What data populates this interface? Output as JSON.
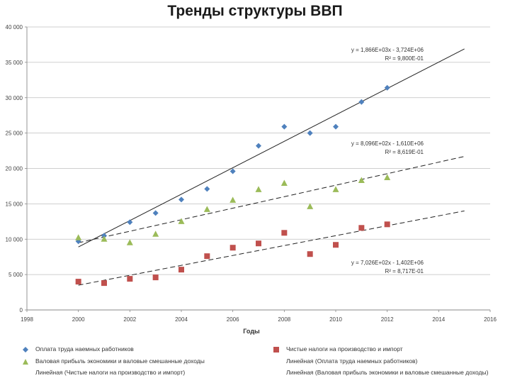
{
  "chart_data": {
    "type": "scatter",
    "title": "Тренды структуры ВВП",
    "xlabel": "Годы",
    "ylabel": "",
    "xlim": [
      1998,
      2016
    ],
    "ylim": [
      0,
      40000
    ],
    "x_ticks": [
      "1998",
      "2000",
      "2002",
      "2004",
      "2006",
      "2008",
      "2010",
      "2012",
      "2014",
      "2016"
    ],
    "y_ticks": [
      "0",
      "5 000",
      "10 000",
      "15 000",
      "20 000",
      "25 000",
      "30 000",
      "35 000",
      "40 000"
    ],
    "grid": "horizontal",
    "legend_position": "bottom",
    "series": [
      {
        "name": "Оплата труда наемных работников",
        "marker": "diamond",
        "color": "#4f81bd",
        "x": [
          2000,
          2001,
          2002,
          2003,
          2004,
          2005,
          2006,
          2007,
          2008,
          2009,
          2010,
          2011,
          2012
        ],
        "values": [
          9700,
          10500,
          12400,
          13700,
          15600,
          17100,
          19600,
          23200,
          25900,
          25000,
          25900,
          29400,
          31400
        ]
      },
      {
        "name": "Чистые налоги на производство и импорт",
        "marker": "square",
        "color": "#c0504d",
        "x": [
          2000,
          2001,
          2002,
          2003,
          2004,
          2005,
          2006,
          2007,
          2008,
          2009,
          2010,
          2011,
          2012
        ],
        "values": [
          4000,
          3800,
          4400,
          4600,
          5700,
          7600,
          8800,
          9400,
          10900,
          7900,
          9200,
          11600,
          12100
        ]
      },
      {
        "name": "Валовая прибыль экономики и валовые смешанные доходы",
        "marker": "triangle",
        "color": "#9bbb59",
        "x": [
          2000,
          2001,
          2002,
          2003,
          2004,
          2005,
          2006,
          2007,
          2008,
          2009,
          2010,
          2011,
          2012
        ],
        "values": [
          10200,
          10000,
          9500,
          10700,
          12500,
          14200,
          15500,
          17000,
          17900,
          14600,
          17000,
          18300,
          18700
        ]
      }
    ],
    "trendlines": [
      {
        "name": "Линейная (Оплата труда наемных работников)",
        "style": "solid",
        "equation": "y = 1,866E+03x - 3,724E+06",
        "r2": "R² = 9,800E-01",
        "x_range": [
          2000,
          2015
        ],
        "y_range": [
          8900,
          36900
        ]
      },
      {
        "name": "Линейная (Валовая прибыль экономики и валовые смешанные доходы)",
        "style": "dashed",
        "equation": "y = 8,096E+02x - 1,610E+06",
        "r2": "R² = 8,619E-01",
        "x_range": [
          2000,
          2015
        ],
        "y_range": [
          9500,
          21700
        ]
      },
      {
        "name": "Линейная (Чистые налоги на производство и импорт)",
        "style": "dashed",
        "equation": "y = 7,026E+02x - 1,402E+06",
        "r2": "R² = 8,717E-01",
        "x_range": [
          2000,
          2015
        ],
        "y_range": [
          3500,
          14000
        ]
      }
    ],
    "legend": {
      "row1_left": "Оплата труда наемных работников",
      "row1_right": "Чистые налоги на производство и импорт",
      "row2_left": "Валовая прибыль экономики и валовые смешанные доходы",
      "row2_right": "Линейная (Оплата труда наемных работников)",
      "row3_left": "Линейная (Чистые налоги на производство и импорт)",
      "row3_right": "Линейная (Валовая прибыль экономики и валовые смешанные доходы)"
    }
  }
}
